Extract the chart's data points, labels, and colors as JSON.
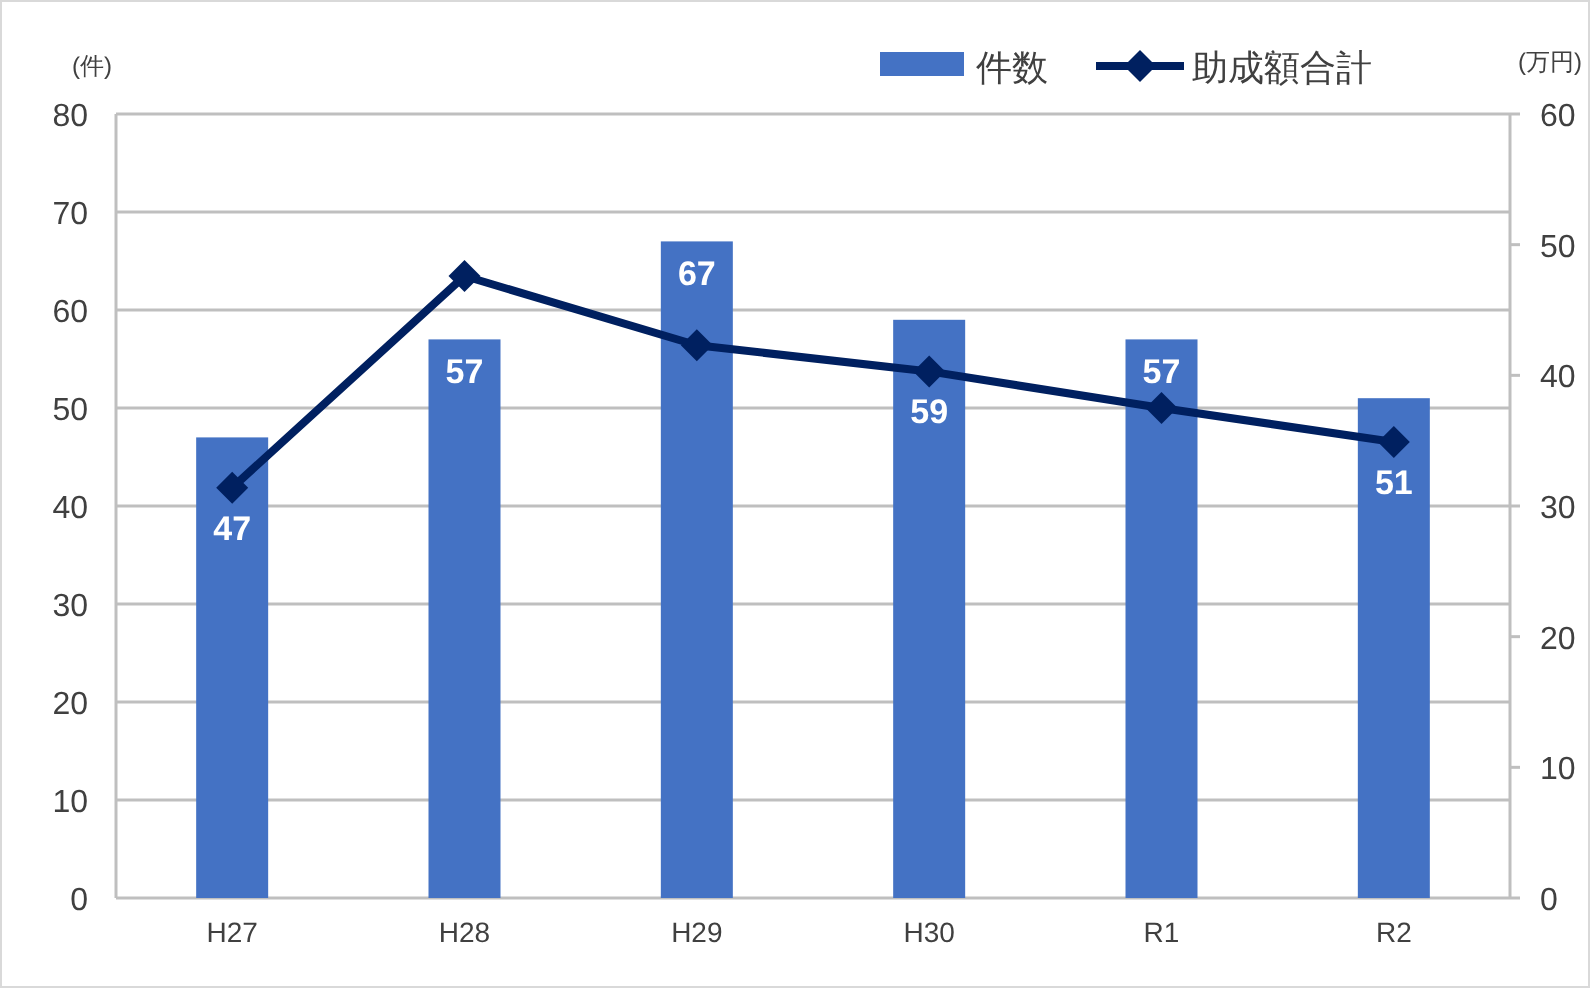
{
  "chart_data": {
    "type": "bar",
    "ylabel": "(件)",
    "y2label": "(万円)",
    "categories": [
      "H27",
      "H28",
      "H29",
      "H30",
      "R1",
      "R2"
    ],
    "series": [
      {
        "name": "件数",
        "color": "#4472c4",
        "values": [
          47,
          57,
          67,
          59,
          57,
          51
        ],
        "value_labels": [
          "47",
          "57",
          "67",
          "59",
          "57",
          "51"
        ]
      },
      {
        "name": "助成額合計",
        "type": "line",
        "axis": "y2",
        "color": "#002060",
        "marker": "diamond",
        "values": [
          31.4,
          47.6,
          42.3,
          40.3,
          37.5,
          34.9
        ]
      }
    ],
    "ylim": [
      0,
      80
    ],
    "yticks": [
      0,
      10,
      20,
      30,
      40,
      50,
      60,
      70,
      80
    ],
    "y2lim": [
      0,
      60
    ],
    "y2ticks": [
      0,
      10,
      20,
      30,
      40,
      50,
      60
    ],
    "grid": "y",
    "legend": "top right"
  }
}
